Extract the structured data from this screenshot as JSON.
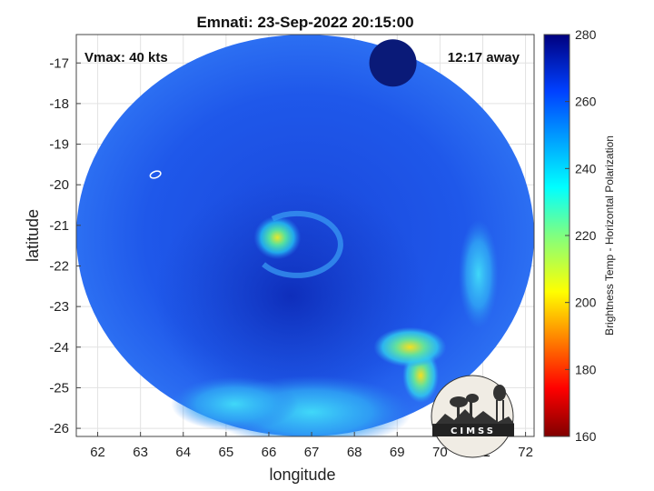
{
  "chart_data": {
    "type": "heatmap",
    "title": "Emnati: 23-Sep-2022 20:15:00",
    "xlabel": "longitude",
    "ylabel": "latitude",
    "xlim": [
      61.5,
      72.2
    ],
    "ylim": [
      -26.2,
      -16.3
    ],
    "xticks": [
      62,
      63,
      64,
      65,
      66,
      67,
      68,
      69,
      70,
      71,
      72
    ],
    "yticks": [
      -17,
      -18,
      -19,
      -20,
      -21,
      -22,
      -23,
      -24,
      -25,
      -26
    ],
    "grid": true,
    "annotations": {
      "vmax": "Vmax: 40 kts",
      "away": "12:17 away"
    },
    "colorbar": {
      "label": "Brightness Temp - Horizontal Polarization",
      "range": [
        160,
        280
      ],
      "ticks": [
        160,
        180,
        200,
        220,
        240,
        260,
        280
      ],
      "colormap": "jet"
    },
    "swath": {
      "center": [
        66.85,
        -21.25
      ],
      "radius_deg_lon": 5.35,
      "radius_deg_lat": 4.95,
      "base_value": 262
    },
    "storm_center": [
      66.3,
      -21.4
    ],
    "features": [
      {
        "description": "eyewall band",
        "lon": 66.2,
        "lat": -21.3,
        "value": 215
      },
      {
        "description": "rain band",
        "lon": 69.55,
        "lat": -24.7,
        "value": 210
      },
      {
        "description": "rain band",
        "lon": 69.3,
        "lat": -24.0,
        "value": 228
      },
      {
        "description": "outer band",
        "lon": 67.0,
        "lat": -25.6,
        "value": 245
      },
      {
        "description": "outer band",
        "lon": 70.9,
        "lat": -22.2,
        "value": 245
      },
      {
        "description": "missing data strip",
        "lon": 68.9,
        "lat": -17.0,
        "value": 276
      }
    ],
    "marker": {
      "lon": 63.35,
      "lat": -19.75
    }
  },
  "colors": {
    "background": "#ffffff",
    "swath_base": "#1f52e6",
    "swath_dark": "#0a1ea0",
    "swath_light": "#3a8cf5"
  },
  "logo": {
    "text": "CIMSS",
    "icon": "cimss-logo-icon"
  }
}
